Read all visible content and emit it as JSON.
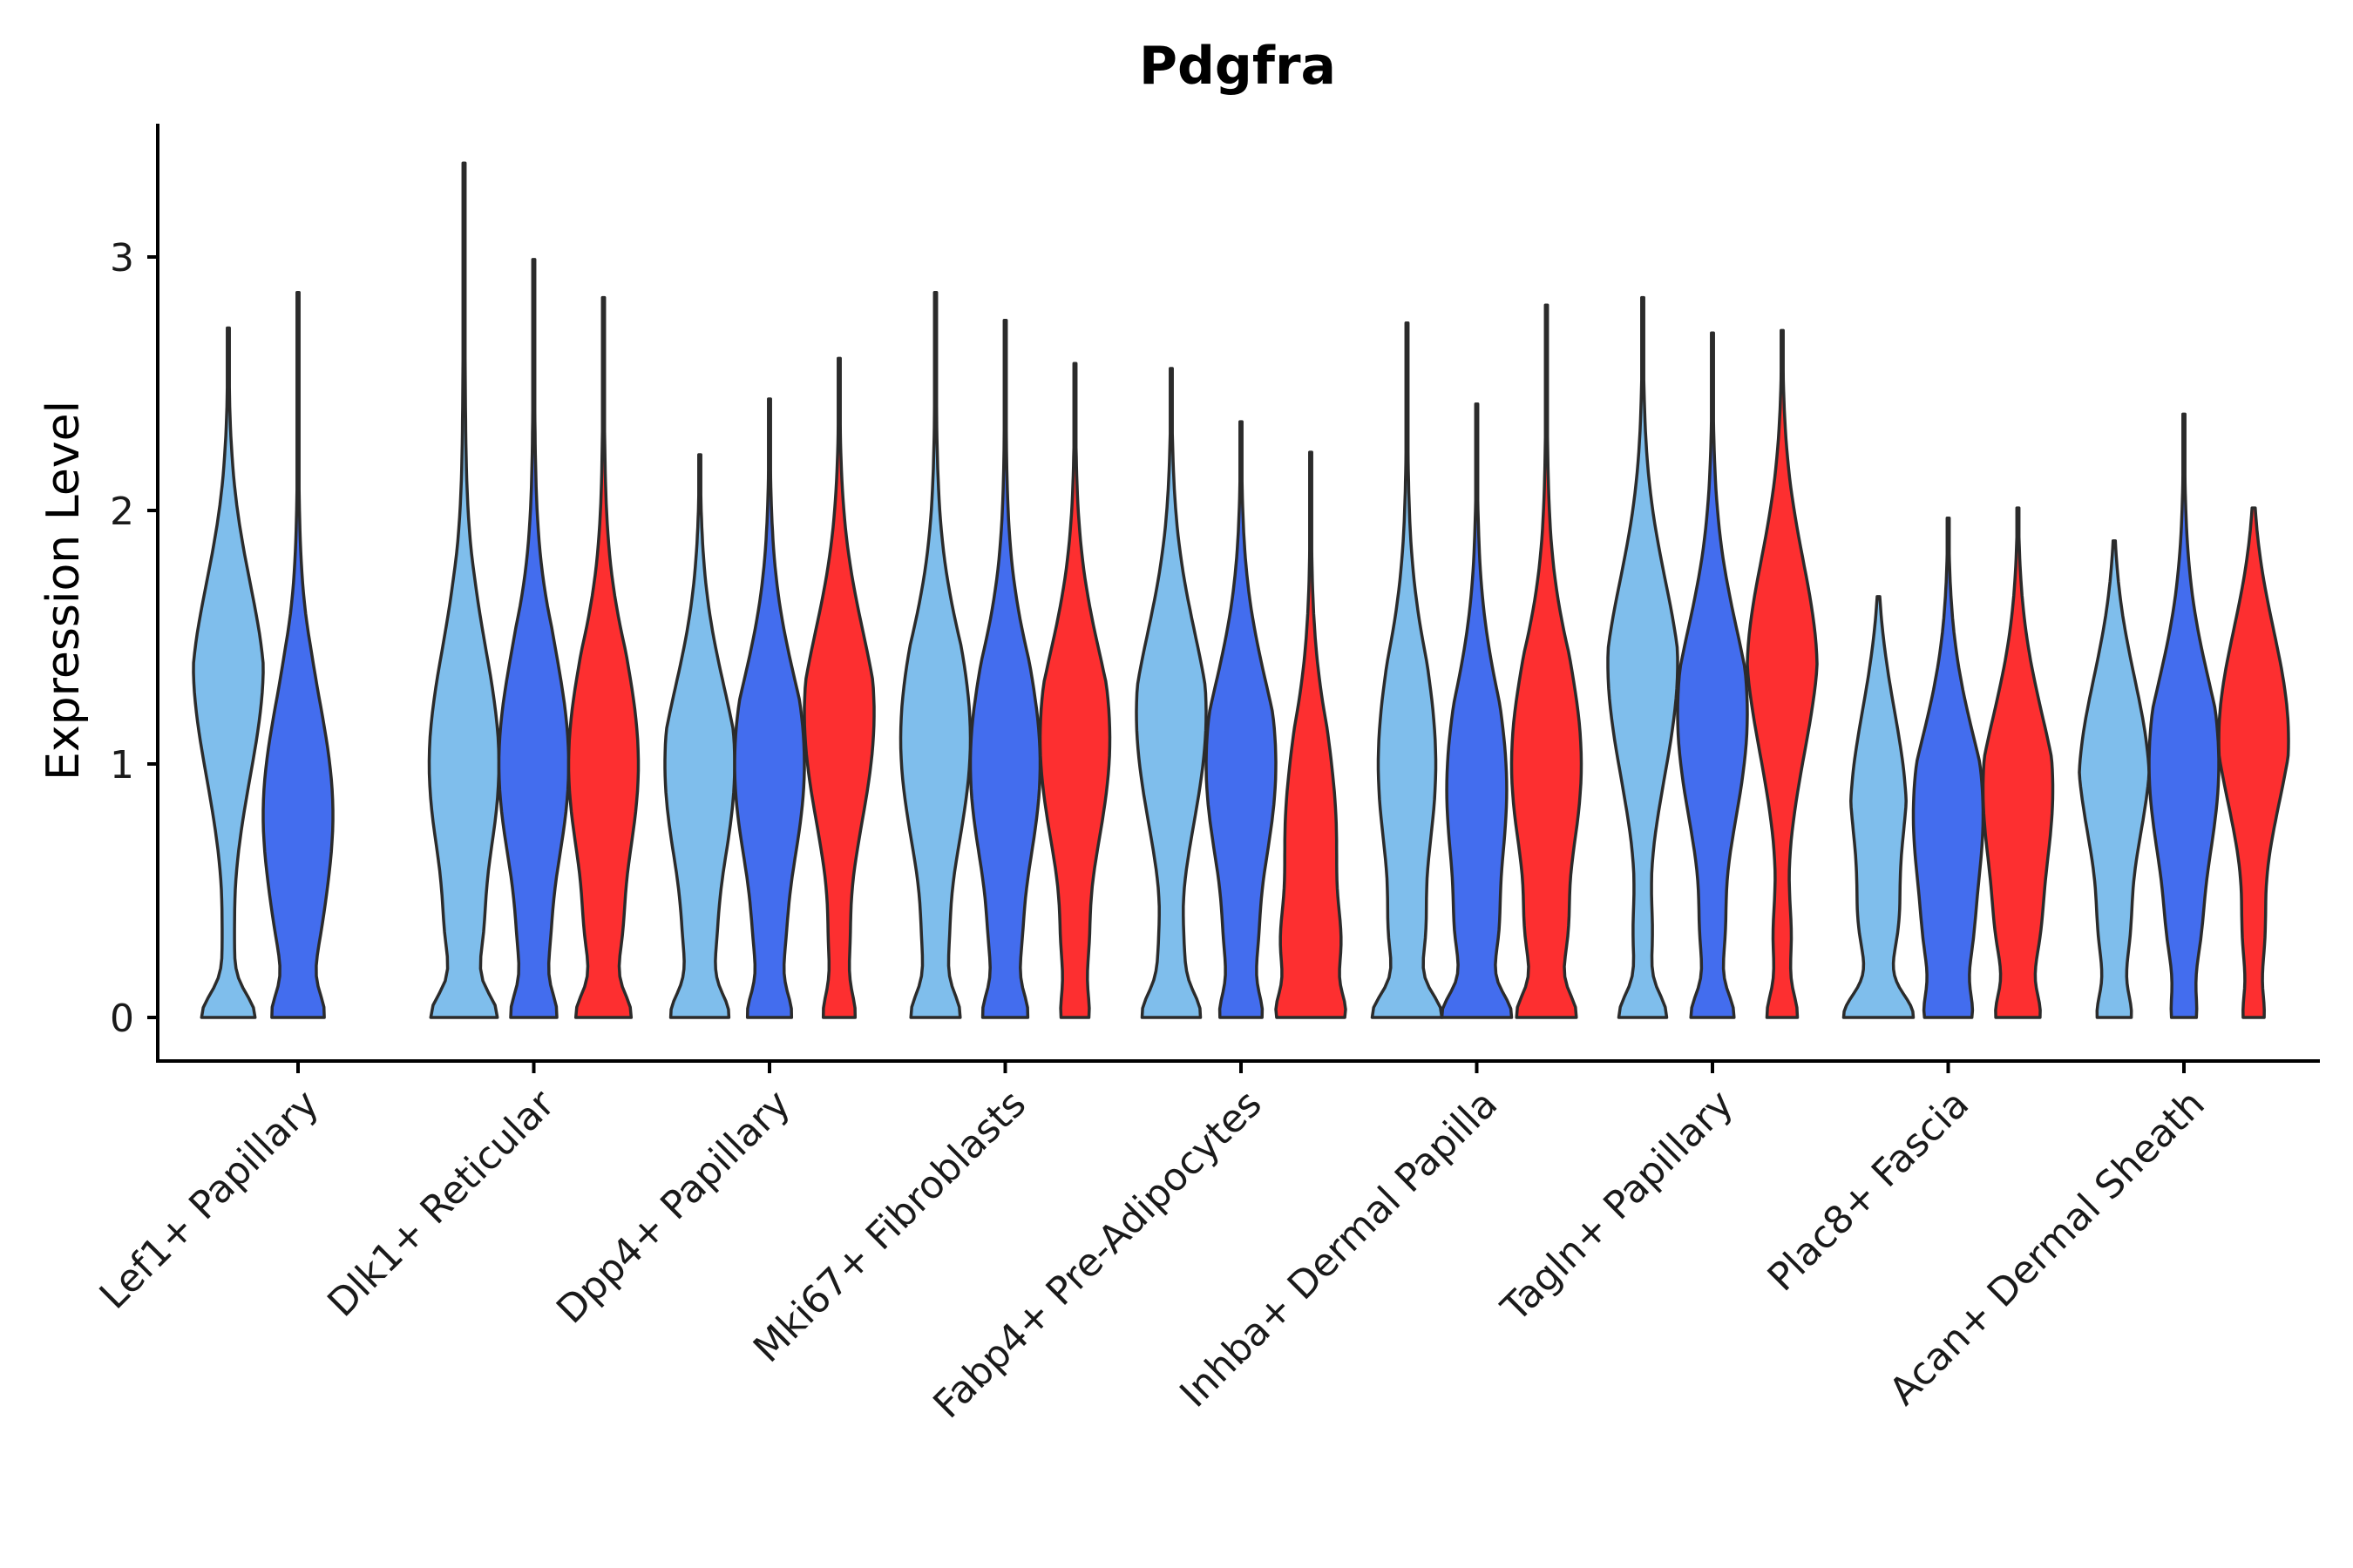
{
  "chart_data": {
    "type": "violin",
    "title": "Pdgfra",
    "xlabel": "",
    "ylabel": "Expression Level",
    "ylim": [
      -0.17,
      3.55
    ],
    "yticks": [
      0,
      1,
      2,
      3
    ],
    "categories": [
      "Lef1+ Papillary",
      "Dlk1+ Reticular",
      "Dpp4+ Papillary",
      "Mki67+ Fibroblasts",
      "Fabp4+ Pre-Adipocytes",
      "Inhba+ Dermal Papilla",
      "Tagln+ Papillary",
      "Plac8+ Fascia",
      "Acan+ Dermal Sheath"
    ],
    "colors": [
      "#7fbeec",
      "#436dee",
      "#fd2f30"
    ],
    "violins": [
      {
        "category": 0,
        "group": 0,
        "max": 2.72,
        "w0": 0.42,
        "peak": 1.4,
        "wp": 0.58,
        "dip": 0.25,
        "dipw": 0.05
      },
      {
        "category": 0,
        "group": 1,
        "max": 2.86,
        "w0": 0.45,
        "peak": 0.8,
        "wp": 0.85,
        "dip": 0.3,
        "dipw": 0.05
      },
      {
        "category": 1,
        "group": 0,
        "max": 3.37,
        "w0": 0.42,
        "peak": 1.0,
        "wp": 0.5,
        "dip": 0.3,
        "dipw": 0.1
      },
      {
        "category": 1,
        "group": 1,
        "max": 2.99,
        "w0": 0.27,
        "peak": 1.0,
        "wp": 0.52,
        "dip": 0.25,
        "dipw": 0.08
      },
      {
        "category": 1,
        "group": 2,
        "max": 2.84,
        "w0": 0.35,
        "peak": 1.0,
        "wp": 0.52,
        "dip": 0.3,
        "dipw": 0.1
      },
      {
        "category": 2,
        "group": 0,
        "max": 2.22,
        "w0": 0.35,
        "peak": 1.0,
        "wp": 0.5,
        "dip": 0.25,
        "dipw": 0.08
      },
      {
        "category": 2,
        "group": 1,
        "max": 2.44,
        "w0": 0.27,
        "peak": 1.0,
        "wp": 0.55,
        "dip": 0.25,
        "dipw": 0.08
      },
      {
        "category": 2,
        "group": 2,
        "max": 2.6,
        "w0": 0.2,
        "peak": 1.2,
        "wp": 0.55,
        "dip": 0.25,
        "dipw": 0.08
      },
      {
        "category": 3,
        "group": 0,
        "max": 2.86,
        "w0": 0.3,
        "peak": 1.1,
        "wp": 0.5,
        "dip": 0.25,
        "dipw": 0.08
      },
      {
        "category": 3,
        "group": 1,
        "max": 2.75,
        "w0": 0.25,
        "peak": 1.0,
        "wp": 0.5,
        "dip": 0.25,
        "dipw": 0.08
      },
      {
        "category": 3,
        "group": 2,
        "max": 2.58,
        "w0": 0.15,
        "peak": 1.1,
        "wp": 0.55,
        "dip": 0.25,
        "dipw": 0.1
      },
      {
        "category": 4,
        "group": 0,
        "max": 2.56,
        "w0": 0.35,
        "peak": 1.2,
        "wp": 0.5,
        "dip": 0.2,
        "dipw": 0.12
      },
      {
        "category": 4,
        "group": 1,
        "max": 2.35,
        "w0": 0.25,
        "peak": 1.0,
        "wp": 0.55,
        "dip": 0.25,
        "dipw": 0.1
      },
      {
        "category": 4,
        "group": 2,
        "max": 2.23,
        "w0": 0.5,
        "peak": 0.7,
        "wp": 0.55,
        "dip": 0.25,
        "dipw": 0.3
      },
      {
        "category": 5,
        "group": 0,
        "max": 2.74,
        "w0": 0.55,
        "peak": 1.0,
        "wp": 0.5,
        "dip": 0.3,
        "dipw": 0.15
      },
      {
        "category": 5,
        "group": 1,
        "max": 2.42,
        "w0": 0.55,
        "peak": 0.9,
        "wp": 0.55,
        "dip": 0.3,
        "dipw": 0.15
      },
      {
        "category": 5,
        "group": 2,
        "max": 2.81,
        "w0": 0.4,
        "peak": 1.0,
        "wp": 0.55,
        "dip": 0.3,
        "dipw": 0.15
      },
      {
        "category": 6,
        "group": 0,
        "max": 2.84,
        "w0": 0.35,
        "peak": 1.4,
        "wp": 0.55,
        "dip": 0.3,
        "dipw": 0.1
      },
      {
        "category": 6,
        "group": 1,
        "max": 2.7,
        "w0": 0.3,
        "peak": 1.2,
        "wp": 0.55,
        "dip": 0.3,
        "dipw": 0.1
      },
      {
        "category": 6,
        "group": 2,
        "max": 2.71,
        "w0": 0.2,
        "peak": 1.5,
        "wp": 0.55,
        "dip": 0.3,
        "dipw": 0.1
      },
      {
        "category": 7,
        "group": 0,
        "max": 1.66,
        "w0": 0.55,
        "peak": 1.0,
        "wp": 0.5,
        "dip": 0.35,
        "dipw": 0.15
      },
      {
        "category": 7,
        "group": 1,
        "max": 1.97,
        "w0": 0.25,
        "peak": 0.8,
        "wp": 0.6,
        "dip": 0.25,
        "dipw": 0.1
      },
      {
        "category": 7,
        "group": 2,
        "max": 2.01,
        "w0": 0.25,
        "peak": 0.9,
        "wp": 0.55,
        "dip": 0.3,
        "dipw": 0.1
      },
      {
        "category": 8,
        "group": 0,
        "max": 1.88,
        "w0": 0.2,
        "peak": 1.1,
        "wp": 0.55,
        "dip": 0.3,
        "dipw": 0.1
      },
      {
        "category": 8,
        "group": 1,
        "max": 2.38,
        "w0": 0.12,
        "peak": 1.0,
        "wp": 0.55,
        "dip": 0.3,
        "dipw": 0.08
      },
      {
        "category": 8,
        "group": 2,
        "max": 2.01,
        "w0": 0.1,
        "peak": 1.3,
        "wp": 0.55,
        "dip": 0.3,
        "dipw": 0.08
      }
    ]
  }
}
